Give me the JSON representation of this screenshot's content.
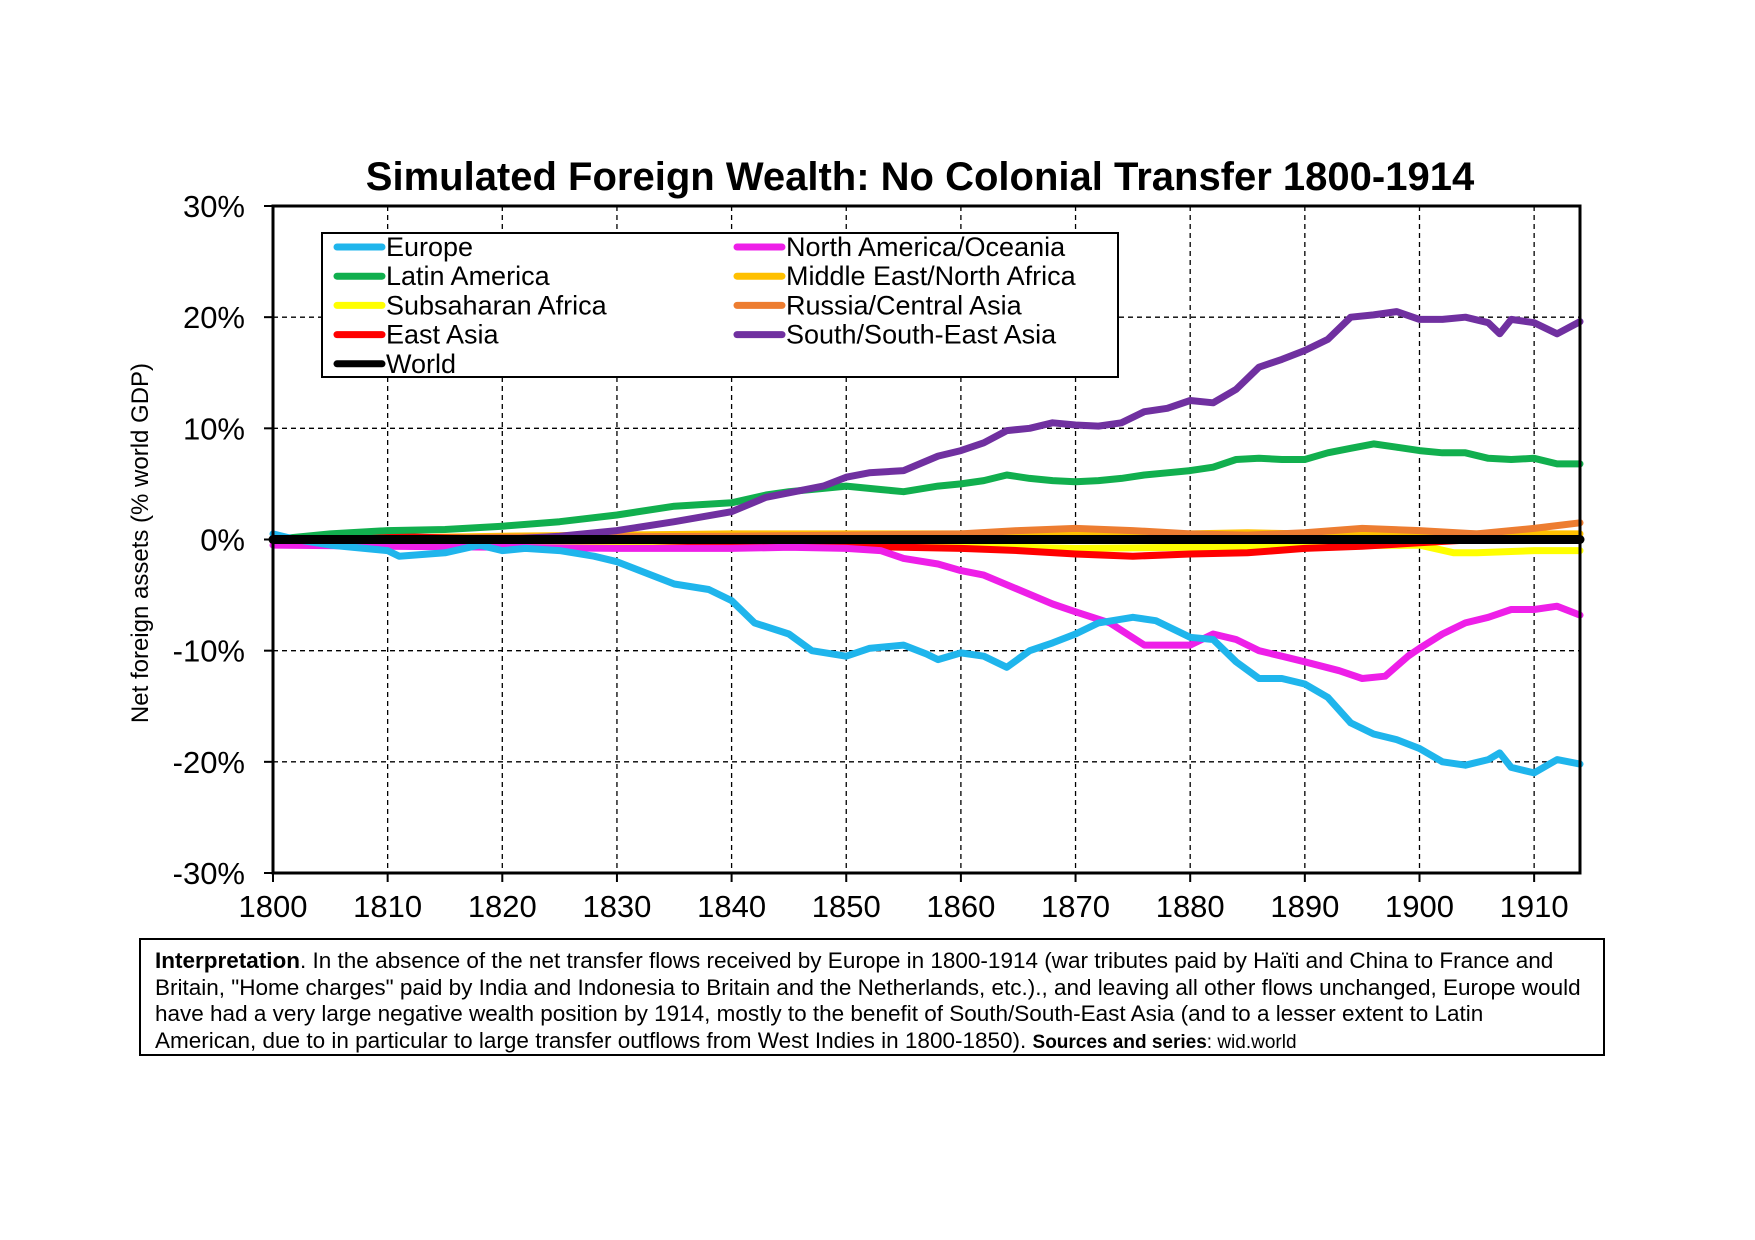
{
  "chart_data": {
    "type": "line",
    "title": "Simulated Foreign Wealth: No Colonial Transfer 1800-1914",
    "ylabel": "Net foreign assets (% world GDP)",
    "xlabel": "",
    "xlim": [
      1800,
      1914
    ],
    "ylim": [
      -30,
      30
    ],
    "x_ticks": [
      "1800",
      "1810",
      "1820",
      "1830",
      "1840",
      "1850",
      "1860",
      "1870",
      "1880",
      "1890",
      "1900",
      "1910"
    ],
    "y_ticks": [
      "30%",
      "20%",
      "10%",
      "0%",
      "-10%",
      "-20%",
      "-30%"
    ],
    "grid": true,
    "legend_position": "top-left",
    "legend_columns": 2,
    "series": [
      {
        "name": "Europe",
        "color": "#1FB5EC",
        "x": [
          1800,
          1802,
          1805,
          1810,
          1811,
          1815,
          1818,
          1820,
          1822,
          1825,
          1828,
          1830,
          1835,
          1838,
          1840,
          1842,
          1845,
          1847,
          1850,
          1852,
          1855,
          1857,
          1858,
          1860,
          1862,
          1864,
          1866,
          1868,
          1870,
          1872,
          1875,
          1877,
          1880,
          1882,
          1884,
          1886,
          1888,
          1890,
          1892,
          1894,
          1896,
          1898,
          1900,
          1902,
          1904,
          1906,
          1907,
          1908,
          1910,
          1912,
          1914
        ],
        "y": [
          0.5,
          0,
          -0.5,
          -1,
          -1.5,
          -1.2,
          -0.5,
          -1,
          -0.8,
          -1,
          -1.5,
          -2,
          -4,
          -4.5,
          -5.5,
          -7.5,
          -8.5,
          -10,
          -10.5,
          -9.8,
          -9.5,
          -10.3,
          -10.8,
          -10.2,
          -10.5,
          -11.5,
          -10,
          -9.3,
          -8.5,
          -7.5,
          -7,
          -7.3,
          -8.8,
          -9,
          -11,
          -12.5,
          -12.5,
          -13,
          -14.2,
          -16.5,
          -17.5,
          -18,
          -18.8,
          -20,
          -20.3,
          -19.8,
          -19.2,
          -20.5,
          -21,
          -19.8,
          -20.2
        ]
      },
      {
        "name": "North America/Oceania",
        "color": "#EE1FE8",
        "x": [
          1800,
          1810,
          1820,
          1830,
          1840,
          1845,
          1850,
          1853,
          1855,
          1858,
          1860,
          1862,
          1865,
          1868,
          1870,
          1873,
          1876,
          1880,
          1882,
          1884,
          1886,
          1888,
          1890,
          1893,
          1895,
          1897,
          1899,
          1900,
          1902,
          1904,
          1906,
          1908,
          1910,
          1912,
          1914
        ],
        "y": [
          -0.5,
          -0.6,
          -0.7,
          -0.8,
          -0.8,
          -0.7,
          -0.8,
          -1,
          -1.7,
          -2.2,
          -2.8,
          -3.2,
          -4.5,
          -5.8,
          -6.5,
          -7.5,
          -9.5,
          -9.5,
          -8.5,
          -9,
          -10,
          -10.5,
          -11,
          -11.8,
          -12.5,
          -12.3,
          -10.5,
          -9.8,
          -8.5,
          -7.5,
          -7,
          -6.3,
          -6.3,
          -6,
          -6.8
        ]
      },
      {
        "name": "Latin America",
        "color": "#11AF4E",
        "x": [
          1800,
          1805,
          1810,
          1815,
          1820,
          1825,
          1830,
          1835,
          1840,
          1843,
          1845,
          1848,
          1850,
          1853,
          1855,
          1858,
          1860,
          1862,
          1864,
          1866,
          1868,
          1870,
          1872,
          1874,
          1876,
          1878,
          1880,
          1882,
          1884,
          1886,
          1888,
          1890,
          1892,
          1894,
          1896,
          1898,
          1900,
          1902,
          1904,
          1906,
          1908,
          1910,
          1912,
          1914
        ],
        "y": [
          0,
          0.5,
          0.8,
          0.9,
          1.2,
          1.6,
          2.2,
          3,
          3.3,
          4,
          4.3,
          4.6,
          4.8,
          4.5,
          4.3,
          4.8,
          5,
          5.3,
          5.8,
          5.5,
          5.3,
          5.2,
          5.3,
          5.5,
          5.8,
          6,
          6.2,
          6.5,
          7.2,
          7.3,
          7.2,
          7.2,
          7.8,
          8.2,
          8.6,
          8.3,
          8,
          7.8,
          7.8,
          7.3,
          7.2,
          7.3,
          6.8,
          6.8
        ]
      },
      {
        "name": "Middle East/North Africa",
        "color": "#FFC000",
        "x": [
          1800,
          1820,
          1840,
          1850,
          1860,
          1870,
          1880,
          1885,
          1890,
          1900,
          1910,
          1914
        ],
        "y": [
          0,
          0.3,
          0.5,
          0.5,
          0.5,
          0.4,
          0.5,
          0.6,
          0.5,
          0.5,
          0.5,
          0.5
        ]
      },
      {
        "name": "Subsaharan Africa",
        "color": "#FFFF00",
        "x": [
          1800,
          1820,
          1840,
          1860,
          1870,
          1880,
          1890,
          1900,
          1903,
          1905,
          1910,
          1914
        ],
        "y": [
          0,
          -0.3,
          -0.5,
          -0.6,
          -0.8,
          -0.7,
          -0.6,
          -0.5,
          -1.2,
          -1.2,
          -1,
          -1
        ]
      },
      {
        "name": "Russia/Central Asia",
        "color": "#ED7D31",
        "x": [
          1800,
          1820,
          1840,
          1850,
          1860,
          1865,
          1870,
          1875,
          1880,
          1885,
          1890,
          1895,
          1900,
          1905,
          1910,
          1914
        ],
        "y": [
          0,
          0.2,
          0.3,
          0.4,
          0.5,
          0.8,
          1,
          0.8,
          0.5,
          0.4,
          0.6,
          1,
          0.8,
          0.5,
          1,
          1.5
        ]
      },
      {
        "name": "East Asia",
        "color": "#FF0000",
        "x": [
          1800,
          1810,
          1820,
          1830,
          1840,
          1850,
          1860,
          1865,
          1870,
          1875,
          1880,
          1885,
          1890,
          1895,
          1900,
          1905,
          1910,
          1914
        ],
        "y": [
          0,
          0.3,
          0,
          0,
          -0.3,
          -0.6,
          -0.8,
          -1,
          -1.3,
          -1.5,
          -1.3,
          -1.2,
          -0.8,
          -0.6,
          -0.3,
          0,
          0,
          0
        ]
      },
      {
        "name": "South/South-East Asia",
        "color": "#7030A0",
        "x": [
          1800,
          1820,
          1825,
          1830,
          1835,
          1840,
          1843,
          1845,
          1848,
          1850,
          1852,
          1855,
          1858,
          1860,
          1862,
          1864,
          1866,
          1868,
          1870,
          1872,
          1874,
          1876,
          1878,
          1880,
          1882,
          1884,
          1886,
          1888,
          1890,
          1892,
          1894,
          1896,
          1898,
          1900,
          1902,
          1904,
          1906,
          1907,
          1908,
          1910,
          1912,
          1914
        ],
        "y": [
          0,
          0,
          0.3,
          0.8,
          1.6,
          2.5,
          3.8,
          4.2,
          4.8,
          5.6,
          6,
          6.2,
          7.5,
          8,
          8.7,
          9.8,
          10,
          10.5,
          10.3,
          10.2,
          10.5,
          11.5,
          11.8,
          12.5,
          12.3,
          13.5,
          15.5,
          16.2,
          17,
          18,
          20,
          20.2,
          20.5,
          19.8,
          19.8,
          20,
          19.5,
          18.5,
          19.8,
          19.5,
          18.5,
          19.6
        ]
      },
      {
        "name": "World",
        "color": "#000000",
        "x": [
          1800,
          1914
        ],
        "y": [
          0,
          0
        ]
      }
    ]
  },
  "note": {
    "label": "Interpretation",
    "text": ". In the absence of the net transfer flows received by Europe in 1800-1914 (war tributes paid by Haïti and China to France and Britain, \"Home charges\" paid by India and Indonesia to Britain and the Netherlands, etc.).,  and leaving all other flows unchanged, Europe would have had a very large negative wealth position by 1914, mostly to the benefit of South/South-East  Asia (and to a lesser extent to Latin American, due to in particular to large transfer outflows from West Indies in 1800-1850). ",
    "sources_label": "Sources and series",
    "sources_value": ": wid.world"
  }
}
